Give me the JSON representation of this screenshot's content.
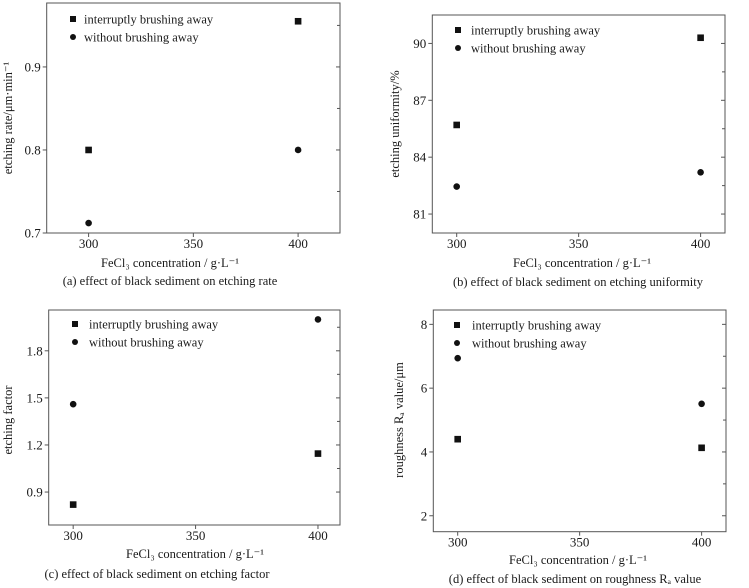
{
  "chart_data": [
    {
      "type": "scatter",
      "caption": "(a) effect of black sediment on etching rate",
      "xlabel": "FeCl₃ concentration / g·L⁻¹",
      "ylabel": "etching rate/μm·min⁻¹",
      "xlim": [
        280,
        420
      ],
      "ylim": [
        0.7,
        0.977
      ],
      "xticks": [
        300,
        350,
        400
      ],
      "xtick_labels": [
        "300",
        "350",
        "400"
      ],
      "yticks": [
        0.7,
        0.8,
        0.9
      ],
      "ytick_labels": [
        "0.7",
        "0.8",
        "0.9"
      ],
      "legend": "top-left",
      "series": [
        {
          "name": "interruptly brushing away",
          "marker": "square",
          "x": [
            300,
            400
          ],
          "y": [
            0.8,
            0.955
          ]
        },
        {
          "name": "without brushing away",
          "marker": "circle",
          "x": [
            300,
            400
          ],
          "y": [
            0.712,
            0.8
          ]
        }
      ]
    },
    {
      "type": "scatter",
      "caption": "(b) effect of black sediment on etching uniformity",
      "xlabel": "FeCl₃ concentration / g·L⁻¹",
      "ylabel": "etching uniformity/%",
      "xlim": [
        290,
        410
      ],
      "ylim": [
        80.0,
        91.5
      ],
      "xticks": [
        300,
        350,
        400
      ],
      "xtick_labels": [
        "300",
        "350",
        "400"
      ],
      "yticks": [
        81,
        84,
        87,
        90
      ],
      "ytick_labels": [
        "81",
        "84",
        "87",
        "90"
      ],
      "legend": "top-left",
      "series": [
        {
          "name": "interruptly brushing away",
          "marker": "square",
          "x": [
            300,
            400
          ],
          "y": [
            85.7,
            90.3
          ]
        },
        {
          "name": "without brushing away",
          "marker": "circle",
          "x": [
            300,
            400
          ],
          "y": [
            82.45,
            83.2
          ]
        }
      ]
    },
    {
      "type": "scatter",
      "caption": "(c) effect of black sediment on etching factor",
      "xlabel": "FeCl₃ concentration / g·L⁻¹",
      "ylabel": "etching factor",
      "xlim": [
        290,
        409
      ],
      "ylim": [
        0.69,
        2.06
      ],
      "xticks": [
        300,
        350,
        400
      ],
      "xtick_labels": [
        "300",
        "350",
        "400"
      ],
      "yticks": [
        0.9,
        1.2,
        1.5,
        1.8
      ],
      "ytick_labels": [
        "0.9",
        "1.2",
        "1.5",
        "1.8"
      ],
      "legend": "top-left",
      "series": [
        {
          "name": "interruptly brushing away",
          "marker": "square",
          "x": [
            300,
            400
          ],
          "y": [
            0.82,
            1.145
          ]
        },
        {
          "name": "without brushing away",
          "marker": "circle",
          "x": [
            300,
            400
          ],
          "y": [
            1.46,
            2.0
          ]
        }
      ]
    },
    {
      "type": "scatter",
      "caption": "(d) effect of black sediment on roughness Rₐ value",
      "xlabel": "FeCl₃ concentration / g·L⁻¹",
      "ylabel": "roughness Rₐ value/μm",
      "xlim": [
        290,
        410
      ],
      "ylim": [
        1.5,
        8.45
      ],
      "xticks": [
        300,
        350,
        400
      ],
      "xtick_labels": [
        "300",
        "350",
        "400"
      ],
      "yticks": [
        2,
        4,
        6,
        8
      ],
      "ytick_labels": [
        "2",
        "4",
        "6",
        "8"
      ],
      "legend": "top-left",
      "series": [
        {
          "name": "interruptly brushing away",
          "marker": "square",
          "x": [
            300,
            400
          ],
          "y": [
            4.4,
            4.13
          ]
        },
        {
          "name": "without brushing away",
          "marker": "circle",
          "x": [
            300,
            400
          ],
          "y": [
            6.94,
            5.51
          ]
        }
      ]
    }
  ],
  "colors": {
    "axis": "#555555",
    "marker": "#111111",
    "text": "#1a1a1a"
  }
}
